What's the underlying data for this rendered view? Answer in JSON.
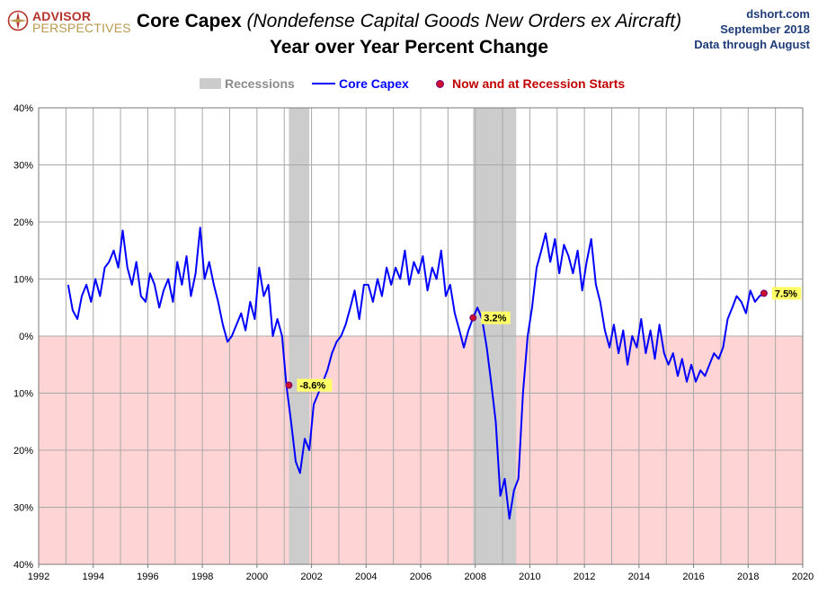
{
  "brand": {
    "line1": "ADVISOR",
    "line2": "PERSPECTIVES"
  },
  "title": {
    "bold": "Core Capex",
    "italic": "(Nondefense  Capital Goods New Orders ex Aircraft)",
    "line2": "Year over Year Percent Change"
  },
  "source": {
    "site": "dshort.com",
    "date": "September 2018",
    "through": "Data through August"
  },
  "legend": {
    "recessions": "Recessions",
    "series": "Core Capex",
    "points": "Now and at Recession Starts"
  },
  "colors": {
    "line": "#0000ff",
    "recession": "#cccccc",
    "negative_fill": "#ffd4d4",
    "point": "#d0102a",
    "label_bg": "#ffff66"
  },
  "chart_data": {
    "type": "line",
    "xlim": [
      1992,
      2020
    ],
    "ylim": [
      -40,
      40
    ],
    "x_ticks": [
      "1992",
      "1994",
      "1996",
      "1998",
      "2000",
      "2002",
      "2004",
      "2006",
      "2008",
      "2010",
      "2012",
      "2014",
      "2016",
      "2018",
      "2020"
    ],
    "y_ticks": [
      "40%",
      "30%",
      "20%",
      "10%",
      "0%",
      "10%",
      "20%",
      "30%",
      "40%"
    ],
    "grid": true,
    "recessions": [
      [
        2001.17,
        2001.92
      ],
      [
        2007.92,
        2009.5
      ]
    ],
    "series": [
      {
        "name": "Core Capex",
        "x": [
          1993.08,
          1993.25,
          1993.42,
          1993.58,
          1993.75,
          1993.92,
          1994.08,
          1994.25,
          1994.42,
          1994.58,
          1994.75,
          1994.92,
          1995.08,
          1995.25,
          1995.42,
          1995.58,
          1995.75,
          1995.92,
          1996.08,
          1996.25,
          1996.42,
          1996.58,
          1996.75,
          1996.92,
          1997.08,
          1997.25,
          1997.42,
          1997.58,
          1997.75,
          1997.92,
          1998.08,
          1998.25,
          1998.42,
          1998.58,
          1998.75,
          1998.92,
          1999.08,
          1999.25,
          1999.42,
          1999.58,
          1999.75,
          1999.92,
          2000.08,
          2000.25,
          2000.42,
          2000.58,
          2000.75,
          2000.92,
          2001.08,
          2001.25,
          2001.42,
          2001.58,
          2001.75,
          2001.92,
          2002.08,
          2002.25,
          2002.42,
          2002.58,
          2002.75,
          2002.92,
          2003.08,
          2003.25,
          2003.42,
          2003.58,
          2003.75,
          2003.92,
          2004.08,
          2004.25,
          2004.42,
          2004.58,
          2004.75,
          2004.92,
          2005.08,
          2005.25,
          2005.42,
          2005.58,
          2005.75,
          2005.92,
          2006.08,
          2006.25,
          2006.42,
          2006.58,
          2006.75,
          2006.92,
          2007.08,
          2007.25,
          2007.42,
          2007.58,
          2007.75,
          2007.92,
          2008.08,
          2008.25,
          2008.42,
          2008.58,
          2008.75,
          2008.92,
          2009.08,
          2009.25,
          2009.42,
          2009.58,
          2009.75,
          2009.92,
          2010.08,
          2010.25,
          2010.42,
          2010.58,
          2010.75,
          2010.92,
          2011.08,
          2011.25,
          2011.42,
          2011.58,
          2011.75,
          2011.92,
          2012.08,
          2012.25,
          2012.42,
          2012.58,
          2012.75,
          2012.92,
          2013.08,
          2013.25,
          2013.42,
          2013.58,
          2013.75,
          2013.92,
          2014.08,
          2014.25,
          2014.42,
          2014.58,
          2014.75,
          2014.92,
          2015.08,
          2015.25,
          2015.42,
          2015.58,
          2015.75,
          2015.92,
          2016.08,
          2016.25,
          2016.42,
          2016.58,
          2016.75,
          2016.92,
          2017.08,
          2017.25,
          2017.42,
          2017.58,
          2017.75,
          2017.92,
          2018.08,
          2018.25,
          2018.42,
          2018.58
        ],
        "values": [
          9,
          4.5,
          3,
          7,
          9,
          6,
          10,
          7,
          12,
          13,
          15,
          12,
          18.5,
          12,
          9,
          13,
          7,
          6,
          11,
          9,
          5,
          8,
          10,
          6,
          13,
          9,
          14,
          7,
          11,
          19,
          10,
          13,
          9,
          6,
          2,
          -1,
          0,
          2,
          4,
          1,
          6,
          3,
          12,
          7,
          9,
          0,
          3,
          0,
          -8.6,
          -15,
          -22,
          -24,
          -18,
          -20,
          -12,
          -10,
          -8,
          -6,
          -3,
          -1,
          0,
          2,
          5,
          8,
          3,
          9,
          9,
          6,
          10,
          7,
          12,
          9,
          12,
          10,
          15,
          9,
          13,
          11,
          14,
          8,
          12,
          10,
          15,
          7,
          9,
          4,
          1,
          -2,
          1,
          3.2,
          5,
          3,
          -2,
          -8,
          -15,
          -28,
          -25,
          -32,
          -27,
          -25,
          -10,
          0,
          5,
          12,
          15,
          18,
          13,
          17,
          11,
          16,
          14,
          11,
          15,
          8,
          13,
          17,
          9,
          6,
          1,
          -2,
          2,
          -3,
          1,
          -5,
          0,
          -2,
          3,
          -3,
          1,
          -4,
          2,
          -3,
          -5,
          -3,
          -7,
          -4,
          -8,
          -5,
          -8,
          -6,
          -7,
          -5,
          -3,
          -4,
          -2,
          3,
          5,
          7,
          6,
          4,
          8,
          6,
          7,
          7.5
        ]
      }
    ],
    "annotations": [
      {
        "x": 2001.17,
        "y": -8.6,
        "label": "-8.6%"
      },
      {
        "x": 2007.92,
        "y": 3.2,
        "label": "3.2%"
      },
      {
        "x": 2018.58,
        "y": 7.5,
        "label": "7.5%"
      }
    ]
  }
}
